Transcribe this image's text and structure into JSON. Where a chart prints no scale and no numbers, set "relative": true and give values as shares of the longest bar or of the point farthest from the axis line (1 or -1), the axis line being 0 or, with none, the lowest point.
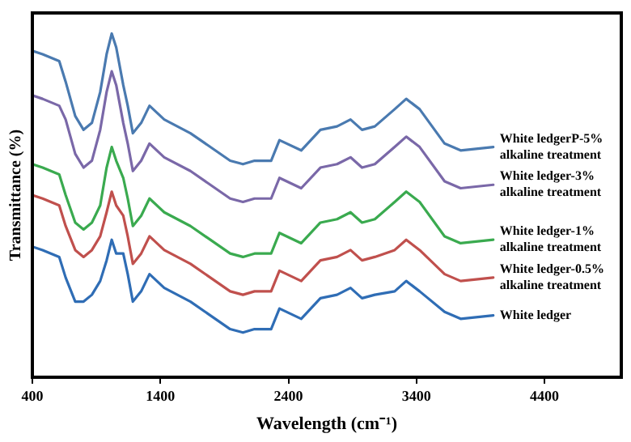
{
  "chart_data": {
    "type": "line",
    "relative": true,
    "xlabel": "Wavelength (cm⁻¹)",
    "ylabel": "Transmittance (%)",
    "x": [
      400,
      480,
      610,
      660,
      735,
      800,
      865,
      930,
      980,
      1020,
      1055,
      1110,
      1145,
      1185,
      1250,
      1315,
      1430,
      1635,
      1945,
      2045,
      2135,
      2265,
      2330,
      2500,
      2650,
      2780,
      2885,
      2975,
      3075,
      3230,
      3320,
      3425,
      3620,
      3745,
      4000
    ],
    "xlim": [
      400,
      5000
    ],
    "xticks": [
      400,
      1400,
      2400,
      3400,
      4400
    ],
    "grid": false,
    "legend": false,
    "marker": "none",
    "line_style": "solid",
    "series": [
      {
        "name": "White ledgerP-5% alkaline treatment",
        "color": "#4a7ab0",
        "values": [
          0.95,
          0.94,
          0.92,
          0.86,
          0.76,
          0.72,
          0.74,
          0.83,
          0.94,
          1.0,
          0.96,
          0.85,
          0.79,
          0.71,
          0.74,
          0.79,
          0.75,
          0.71,
          0.63,
          0.62,
          0.63,
          0.63,
          0.69,
          0.66,
          0.72,
          0.73,
          0.75,
          0.72,
          0.73,
          0.78,
          0.81,
          0.78,
          0.68,
          0.66,
          0.67
        ]
      },
      {
        "name": "White ledger-3% alkaline treatment",
        "color": "#7a68a8",
        "values": [
          0.82,
          0.81,
          0.79,
          0.75,
          0.65,
          0.61,
          0.63,
          0.72,
          0.83,
          0.89,
          0.85,
          0.74,
          0.68,
          0.6,
          0.63,
          0.68,
          0.64,
          0.6,
          0.52,
          0.51,
          0.52,
          0.52,
          0.58,
          0.55,
          0.61,
          0.62,
          0.64,
          0.61,
          0.62,
          0.67,
          0.7,
          0.67,
          0.57,
          0.55,
          0.56
        ]
      },
      {
        "name": "White ledger-1% alkaline treatment",
        "color": "#3aaa4f",
        "values": [
          0.62,
          0.61,
          0.59,
          0.53,
          0.45,
          0.43,
          0.45,
          0.5,
          0.61,
          0.67,
          0.63,
          0.58,
          0.52,
          0.44,
          0.47,
          0.52,
          0.48,
          0.44,
          0.36,
          0.35,
          0.36,
          0.36,
          0.42,
          0.39,
          0.45,
          0.46,
          0.48,
          0.45,
          0.46,
          0.51,
          0.54,
          0.51,
          0.41,
          0.39,
          0.4
        ]
      },
      {
        "name": "White ledger-0.5% alkaline treatment",
        "color": "#c0504d",
        "values": [
          0.53,
          0.52,
          0.5,
          0.44,
          0.37,
          0.35,
          0.37,
          0.41,
          0.48,
          0.54,
          0.5,
          0.47,
          0.41,
          0.33,
          0.36,
          0.41,
          0.37,
          0.33,
          0.25,
          0.24,
          0.25,
          0.25,
          0.31,
          0.28,
          0.34,
          0.35,
          0.37,
          0.34,
          0.35,
          0.37,
          0.4,
          0.37,
          0.3,
          0.28,
          0.29
        ]
      },
      {
        "name": "White ledger",
        "color": "#2f6db5",
        "values": [
          0.38,
          0.37,
          0.35,
          0.29,
          0.22,
          0.22,
          0.24,
          0.28,
          0.34,
          0.4,
          0.36,
          0.36,
          0.3,
          0.22,
          0.25,
          0.3,
          0.26,
          0.22,
          0.14,
          0.13,
          0.14,
          0.14,
          0.2,
          0.17,
          0.23,
          0.24,
          0.26,
          0.23,
          0.24,
          0.25,
          0.28,
          0.25,
          0.19,
          0.17,
          0.18
        ]
      }
    ]
  }
}
